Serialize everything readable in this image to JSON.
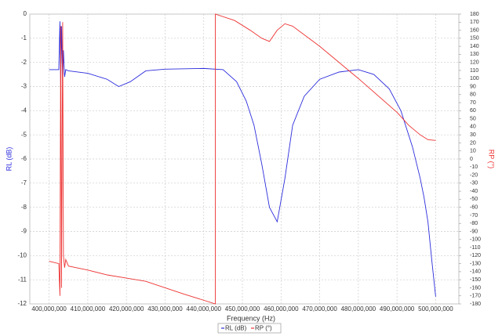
{
  "chart_data": {
    "type": "line",
    "x_label": "Frequency (Hz)",
    "y_label": "RL (dB)",
    "y2_label": "RP (°)",
    "xlim": [
      395000000,
      506000000
    ],
    "xticks": [
      {
        "value": 400000000,
        "label": "400,000,000"
      },
      {
        "value": 410000000,
        "label": "410,000,000"
      },
      {
        "value": 420000000,
        "label": "420,000,000"
      },
      {
        "value": 430000000,
        "label": "430,000,000"
      },
      {
        "value": 440000000,
        "label": "440,000,000"
      },
      {
        "value": 450000000,
        "label": "450,000,000"
      },
      {
        "value": 460000000,
        "label": "460,000,000"
      },
      {
        "value": 470000000,
        "label": "470,000,000"
      },
      {
        "value": 480000000,
        "label": "480,000,000"
      },
      {
        "value": 490000000,
        "label": "490,000,000"
      },
      {
        "value": 500000000,
        "label": "500,000,000"
      }
    ],
    "ylim": [
      -12,
      0
    ],
    "yticks": [
      0,
      -1,
      -2,
      -3,
      -4,
      -5,
      -6,
      -7,
      -8,
      -9,
      -10,
      -11,
      -12
    ],
    "y2lim": [
      -180,
      180
    ],
    "y2ticks": [
      180,
      170,
      160,
      150,
      140,
      130,
      120,
      110,
      100,
      90,
      80,
      70,
      60,
      50,
      40,
      30,
      20,
      10,
      0,
      -10,
      -20,
      -30,
      -40,
      -50,
      -60,
      -70,
      -80,
      -90,
      -100,
      -110,
      -120,
      -130,
      -140,
      -150,
      -160,
      -170,
      -180
    ],
    "grid": true,
    "series": [
      {
        "name": "RL (dB)",
        "color": "#2b2bdd",
        "x": [
          400000000,
          402500000,
          402800000,
          403000000,
          403200000,
          403500000,
          403700000,
          404000000,
          404300000,
          405000000,
          410000000,
          415000000,
          418000000,
          421000000,
          425000000,
          430000000,
          440000000,
          445000000,
          448500000,
          451000000,
          453000000,
          455000000,
          457000000,
          459000000,
          461000000,
          463000000,
          466000000,
          470000000,
          475000000,
          480000000,
          484000000,
          488000000,
          491000000,
          494000000,
          496000000,
          497000000,
          498000000,
          499000000,
          500000000
        ],
        "values": [
          -2.3,
          -2.3,
          -0.3,
          -3.0,
          -0.5,
          -2.8,
          -1.5,
          -2.6,
          -2.3,
          -2.35,
          -2.45,
          -2.7,
          -3.0,
          -2.8,
          -2.35,
          -2.28,
          -2.25,
          -2.3,
          -2.8,
          -3.6,
          -4.6,
          -6.2,
          -8.0,
          -8.6,
          -6.8,
          -4.6,
          -3.4,
          -2.7,
          -2.4,
          -2.3,
          -2.5,
          -3.1,
          -4.0,
          -5.5,
          -6.8,
          -7.6,
          -8.6,
          -10.2,
          -11.7
        ]
      },
      {
        "name": "RP (°)",
        "color": "#ee3333",
        "axis": "y2",
        "x": [
          400000000,
          402500000,
          402800000,
          403000000,
          403200000,
          403500000,
          403700000,
          404000000,
          404300000,
          405000000,
          410000000,
          415000000,
          420000000,
          425000000,
          430000000,
          435000000,
          443000000,
          443000000,
          448000000,
          452000000,
          455000000,
          457000000,
          459000000,
          461000000,
          463000000,
          470000000,
          480000000,
          490000000,
          493000000,
          496000000,
          498000000,
          500000000
        ],
        "values": [
          -127,
          -130,
          -170,
          165,
          -160,
          170,
          -120,
          -135,
          -125,
          -133,
          -138,
          -144,
          -148,
          -152,
          -160,
          -168,
          -180,
          180,
          172,
          160,
          150,
          146,
          160,
          168,
          165,
          140,
          100,
          58,
          42,
          30,
          24,
          23
        ]
      }
    ]
  }
}
